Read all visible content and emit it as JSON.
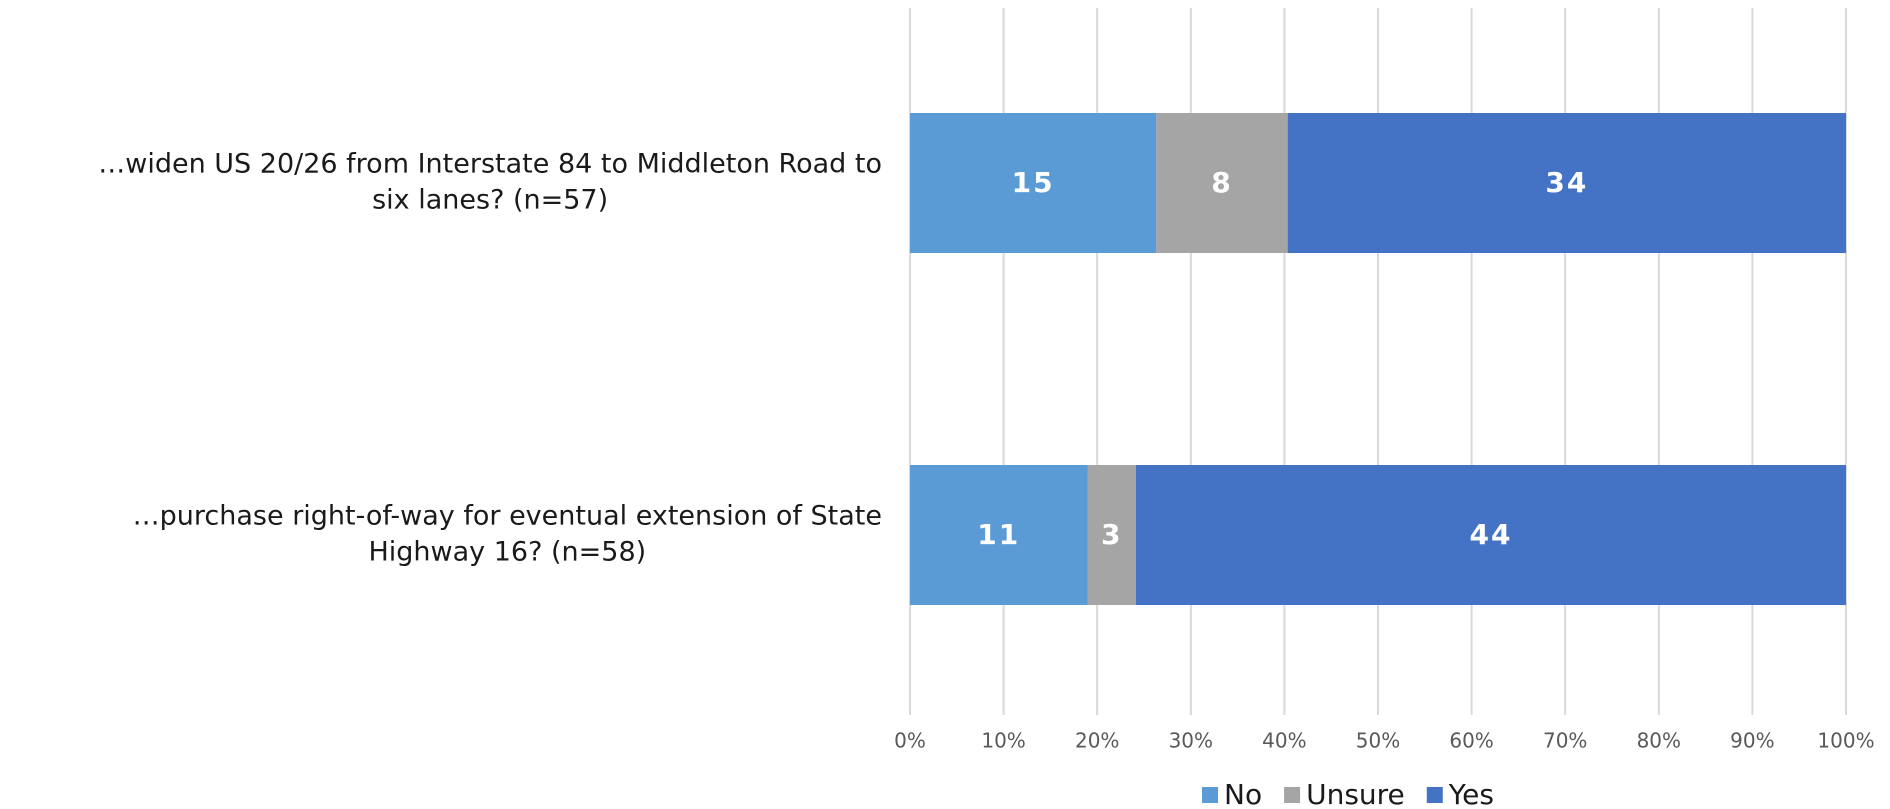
{
  "chart_data": {
    "type": "bar",
    "orientation": "horizontal",
    "stacked": "percent",
    "title": "",
    "xlabel": "",
    "ylabel": "",
    "xlim": [
      0,
      100
    ],
    "x_ticks": [
      "0%",
      "10%",
      "20%",
      "30%",
      "40%",
      "50%",
      "60%",
      "70%",
      "80%",
      "90%",
      "100%"
    ],
    "grid": true,
    "legend_position": "bottom",
    "categories": [
      {
        "lines": [
          "…widen US 20/26 from Interstate 84 to Middleton Road to",
          "six lanes? (n=57)"
        ]
      },
      {
        "lines": [
          "…purchase right-of-way for eventual extension of State",
          "Highway 16? (n=58)"
        ]
      }
    ],
    "series": [
      {
        "name": "No",
        "color": "#5b9bd5",
        "values": [
          15,
          11
        ]
      },
      {
        "name": "Unsure",
        "color": "#a5a5a5",
        "values": [
          8,
          3
        ]
      },
      {
        "name": "Yes",
        "color": "#4472c4",
        "values": [
          34,
          44
        ]
      }
    ]
  }
}
